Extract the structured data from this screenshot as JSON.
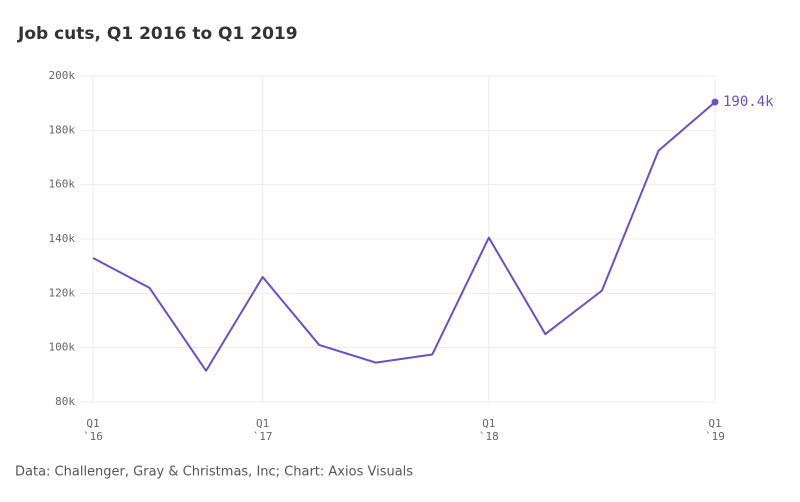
{
  "chart_data": {
    "type": "line",
    "title": "Job cuts, Q1 2016 to Q1 2019",
    "source": "Data: Challenger, Gray & Christmas, Inc; Chart: Axios Visuals",
    "categories": [
      "Q1\n`16",
      null,
      null,
      "Q1\n`17",
      null,
      null,
      null,
      "Q1\n`18",
      null,
      null,
      null,
      "Q1\n`19"
    ],
    "series": [
      {
        "name": "Job cuts",
        "color": "#6a4fc8",
        "values": [
          133,
          122,
          91.5,
          126,
          101,
          94.5,
          97.5,
          140.5,
          105,
          121,
          172.5,
          190.4
        ],
        "value_labels": [
          null,
          null,
          null,
          null,
          null,
          null,
          null,
          null,
          null,
          null,
          null,
          "190.4k"
        ]
      }
    ],
    "ylim": [
      80,
      200
    ],
    "yticks": [
      {
        "value": 80,
        "label": "80k"
      },
      {
        "value": 100,
        "label": "100k"
      },
      {
        "value": 120,
        "label": "120k"
      },
      {
        "value": 140,
        "label": "140k"
      },
      {
        "value": 160,
        "label": "160k"
      },
      {
        "value": 180,
        "label": "180k"
      },
      {
        "value": 200,
        "label": "200k"
      }
    ],
    "grid": true
  }
}
